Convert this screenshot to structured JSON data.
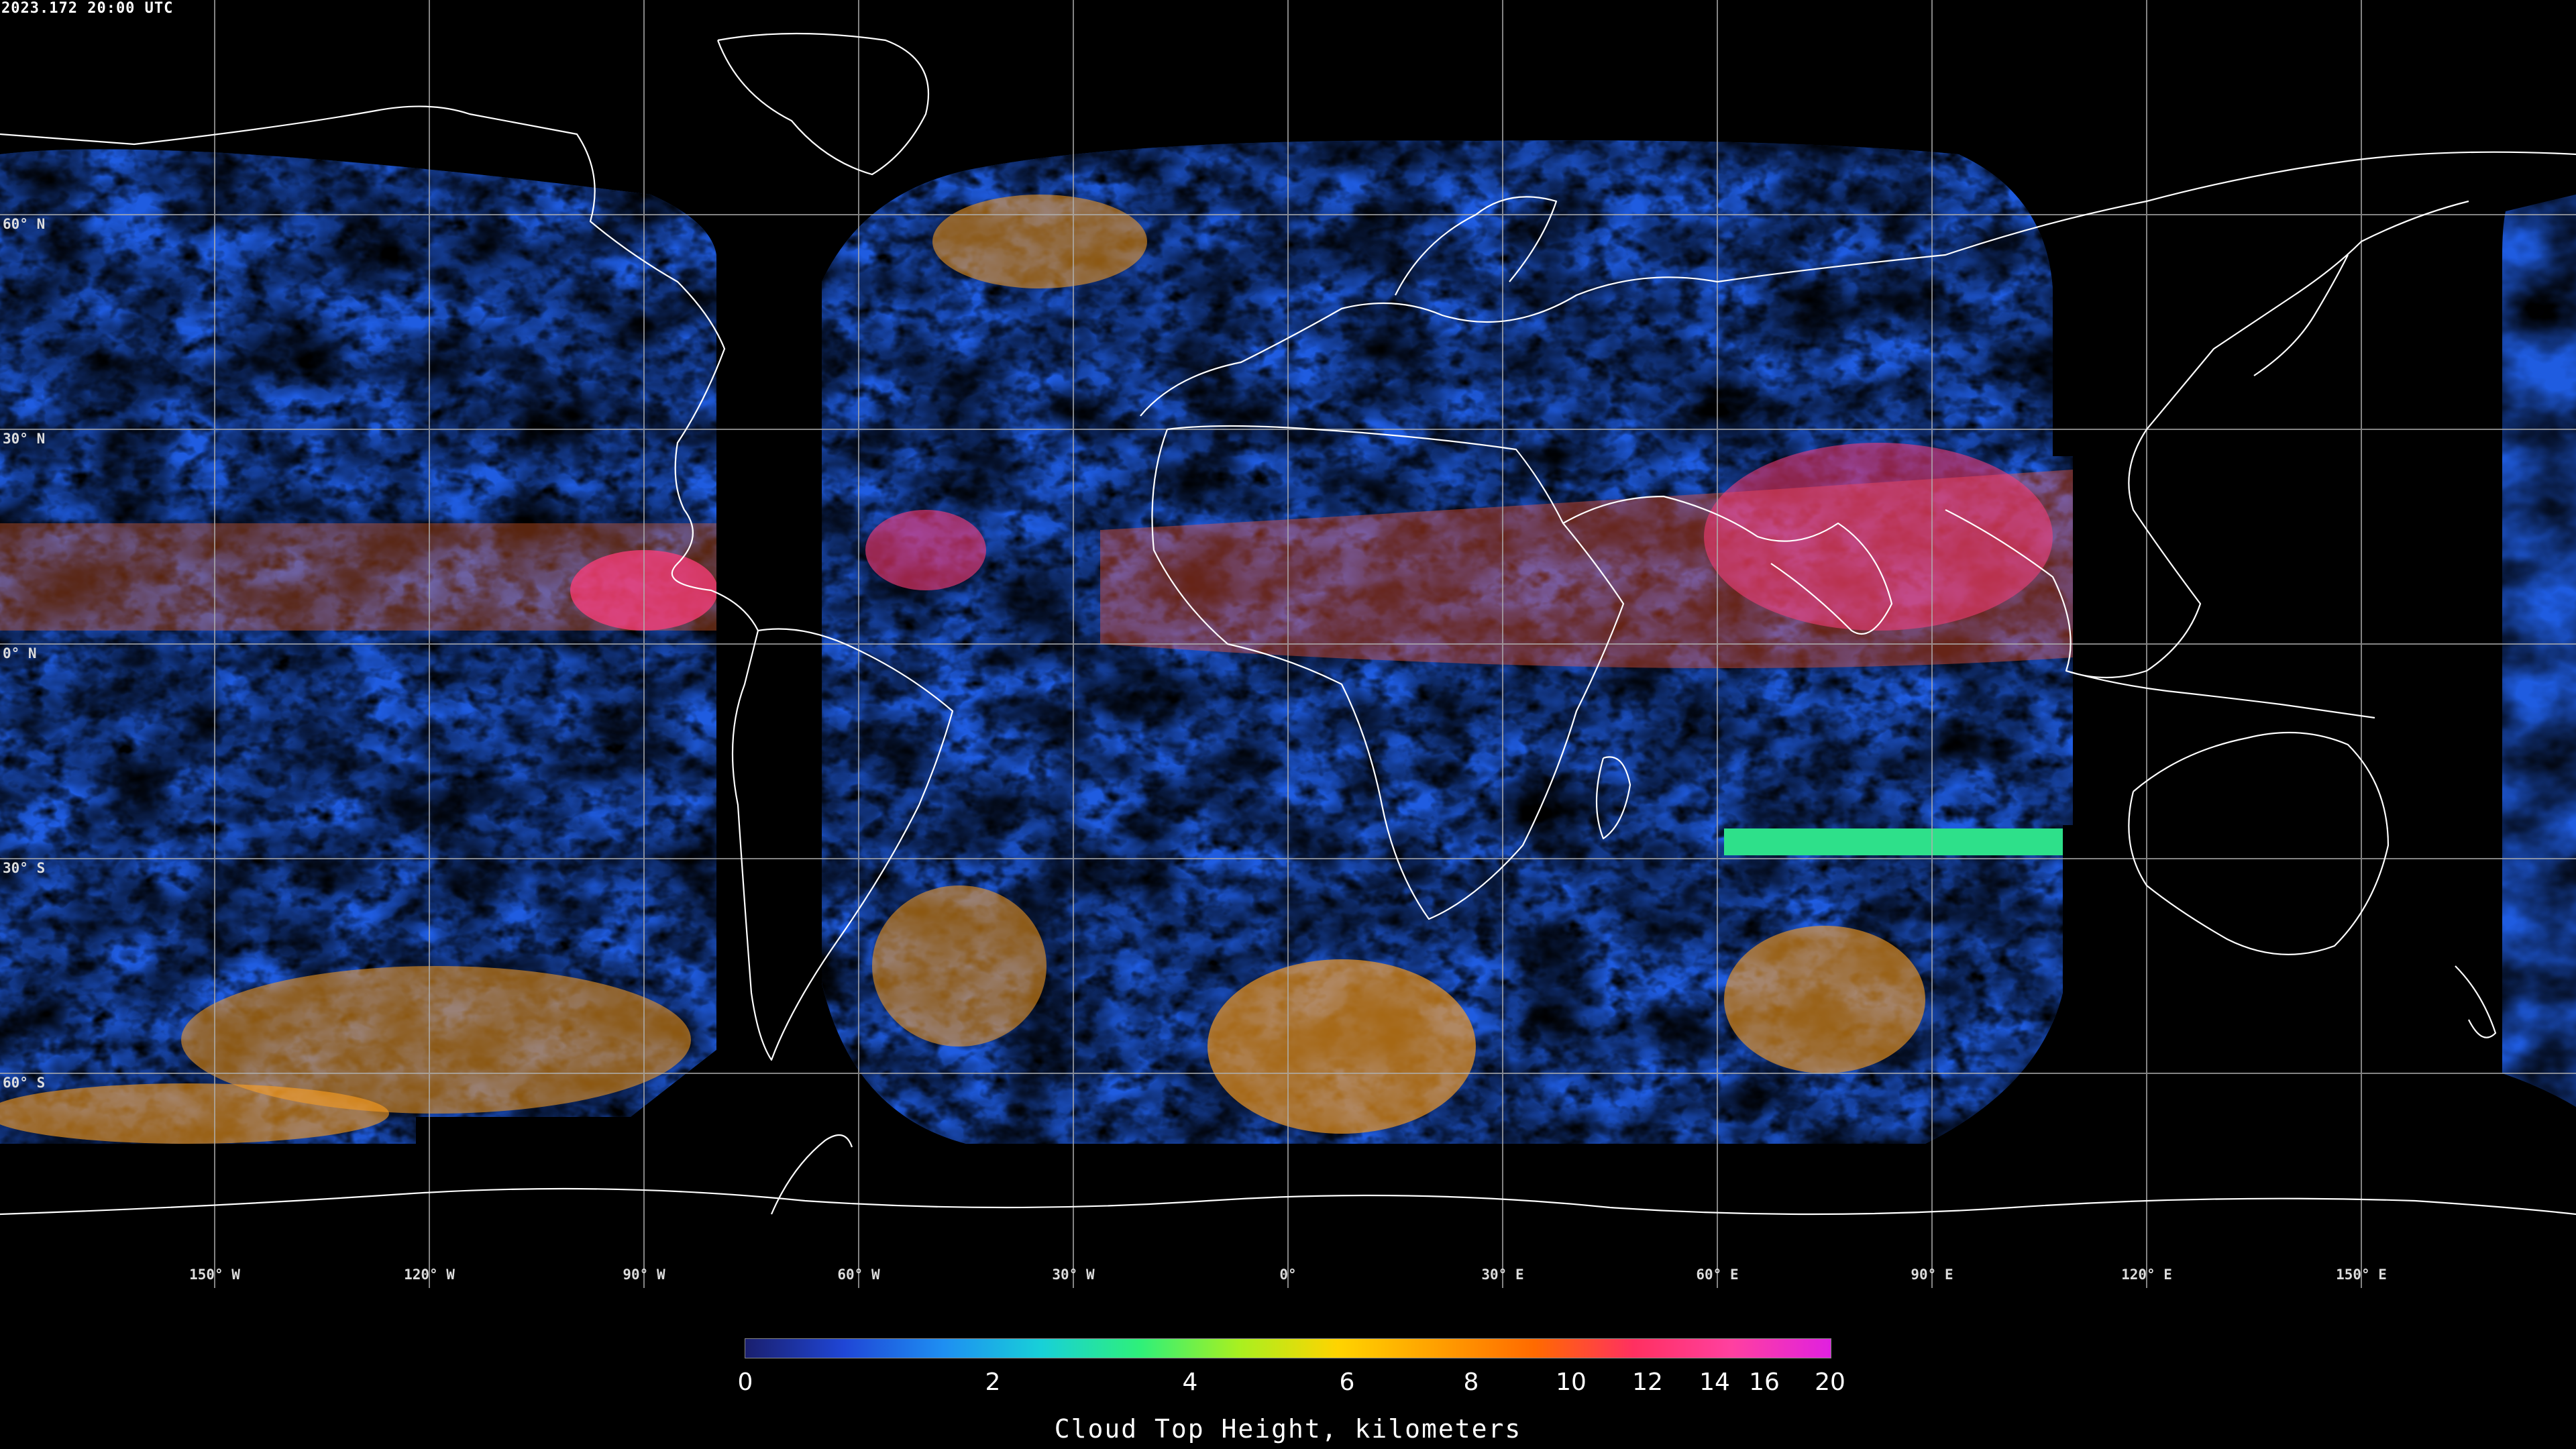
{
  "timestamp": "2023.172 20:00 UTC",
  "lat_labels": [
    "60° N",
    "30° N",
    "0° N",
    "30° S",
    "60° S"
  ],
  "lon_labels": [
    "150° W",
    "120° W",
    "90° W",
    "60° W",
    "30° W",
    "0°",
    "30° E",
    "60° E",
    "90° E",
    "120° E",
    "150° E"
  ],
  "colorbar": {
    "title": "Cloud Top Height, kilometers",
    "ticks": [
      "0",
      "2",
      "4",
      "6",
      "8",
      "10",
      "12",
      "14",
      "16",
      "20"
    ],
    "colors": [
      "#1a1f6e",
      "#1f46d6",
      "#1e8ef2",
      "#18d0d8",
      "#2ef07a",
      "#a8f020",
      "#ffd400",
      "#ffa000",
      "#ff6a00",
      "#ff3060",
      "#ff40a0",
      "#e020e0"
    ]
  },
  "palette": {
    "background": "#000000",
    "coastline": "#ffffff",
    "grid": "#b0b0b0",
    "low_cloud": "#1f5ce0",
    "mid_cloud": "#2ee08a",
    "high_cloud": "#ff9a10",
    "very_high_cloud": "#ff3c78"
  }
}
